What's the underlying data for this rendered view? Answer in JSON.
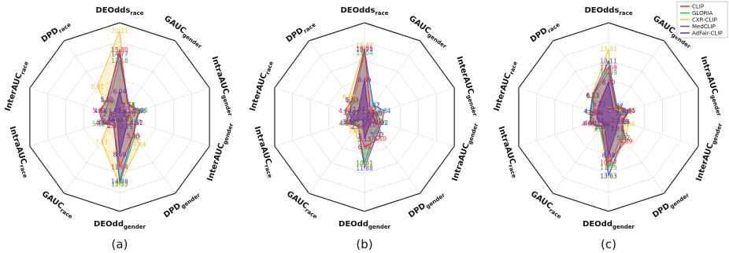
{
  "legend": {
    "items": [
      {
        "name": "CLIP",
        "color": "#e8243c"
      },
      {
        "name": "GLORIA",
        "color": "#37b34a"
      },
      {
        "name": "CXR-CLIP",
        "color": "#f2c230"
      },
      {
        "name": "MedCLIP",
        "color": "#3a55d6"
      },
      {
        "name": "AdFair-CLIP",
        "color": "#6b2c91"
      }
    ]
  },
  "chart_data": [
    {
      "type": "radar",
      "panel_label": "(a)",
      "axes": [
        {
          "base": "DEOdds",
          "sub": "race"
        },
        {
          "base": "GAUC",
          "sub": "gender"
        },
        {
          "base": "IntraAUC",
          "sub": "gender"
        },
        {
          "base": "InterAUC",
          "sub": "gender"
        },
        {
          "base": "DPD",
          "sub": "gender"
        },
        {
          "base": "DEOdd",
          "sub": "gender"
        },
        {
          "base": "GAUC",
          "sub": "race"
        },
        {
          "base": "IntraAUC",
          "sub": "race"
        },
        {
          "base": "InterAUC",
          "sub": "race"
        },
        {
          "base": "DPD",
          "sub": "race"
        }
      ],
      "series": [
        {
          "name": "CXR-CLIP",
          "values": [
            "20.21",
            "3.00",
            "3.00",
            "2.00",
            "7.84",
            "15.80",
            "7.11",
            "2.40",
            "2.60",
            "8.81"
          ]
        },
        {
          "name": "GLORIA",
          "values": [
            "13.18",
            "3.58",
            "5.26",
            "3.67",
            "5.82",
            "15.53",
            "2.28",
            "5.12",
            "3.57",
            "4.30"
          ]
        },
        {
          "name": "MedCLIP",
          "values": [
            "14.77",
            "3.34",
            "4.86",
            "4.01",
            "5.28",
            "14.98",
            "2.39",
            "3.98",
            "4.66",
            "5.12"
          ]
        },
        {
          "name": "CLIP",
          "values": [
            "15.80",
            "3.51",
            "4.37",
            "4.12",
            "5.33",
            "11.64",
            "2.45",
            "4.34",
            "5.02",
            "4.86"
          ]
        },
        {
          "name": "AdFair-CLIP",
          "values": [
            "6.04",
            "1.82",
            "2.29",
            "1.75",
            "2.75",
            "8.69",
            "0.99",
            "2.68",
            "2.46",
            "1.87"
          ]
        }
      ]
    },
    {
      "type": "radar",
      "panel_label": "(b)",
      "axes": [
        {
          "base": "DEOdds",
          "sub": "race"
        },
        {
          "base": "GAUC",
          "sub": "gender"
        },
        {
          "base": "InterAUC",
          "sub": "gender"
        },
        {
          "base": "IntraAUC",
          "sub": "gender"
        },
        {
          "base": "DPD",
          "sub": "gender"
        },
        {
          "base": "DEOdd",
          "sub": "gender"
        },
        {
          "base": "GAUC",
          "sub": "race"
        },
        {
          "base": "IntraAUC",
          "sub": "race"
        },
        {
          "base": "InterAUC",
          "sub": "race"
        },
        {
          "base": "DPD",
          "sub": "race"
        }
      ],
      "series": [
        {
          "name": "CXR-CLIP",
          "values": [
            "16.82",
            "2.20",
            "2.80",
            "3.10",
            "5.00",
            "10.82",
            "3.80",
            "4.68",
            "3.40",
            "6.00"
          ]
        },
        {
          "name": "GLORIA",
          "values": [
            "15.04",
            "3.52",
            "3.07",
            "4.01",
            "4.24",
            "10.61",
            "2.61",
            "3.30",
            "3.58",
            "4.40"
          ]
        },
        {
          "name": "MedCLIP",
          "values": [
            "15.74",
            "3.47",
            "4.84",
            "4.22",
            "5.03",
            "11.88",
            "2.59",
            "4.54",
            "3.62",
            "5.03"
          ]
        },
        {
          "name": "CLIP",
          "values": [
            "16.05",
            "2.32",
            "2.69",
            "3.35",
            "6.10",
            "6.98",
            "2.76",
            "3.98",
            "4.76",
            "4.93"
          ]
        },
        {
          "name": "AdFair-CLIP",
          "values": [
            "8.69",
            "1.44",
            "1.88",
            "2.61",
            "2.10",
            "5.13",
            "0.79",
            "3.58",
            "2.93",
            "2.27"
          ]
        }
      ]
    },
    {
      "type": "radar",
      "panel_label": "(c)",
      "axes": [
        {
          "base": "DEOdds",
          "sub": "race"
        },
        {
          "base": "GAUC",
          "sub": "gender"
        },
        {
          "base": "IntraAUC",
          "sub": "gender"
        },
        {
          "base": "InterAUC",
          "sub": "gender"
        },
        {
          "base": "DPD",
          "sub": "gender"
        },
        {
          "base": "DEOdd",
          "sub": "gender"
        },
        {
          "base": "GAUC",
          "sub": "race"
        },
        {
          "base": "IntraAUC",
          "sub": "race"
        },
        {
          "base": "InterAUC",
          "sub": "race"
        },
        {
          "base": "DPD",
          "sub": "race"
        }
      ],
      "series": [
        {
          "name": "CXR-CLIP",
          "values": [
            "15.91",
            "2.30",
            "4.11",
            "4.96",
            "6.40",
            "13.83",
            "3.47",
            "4.00",
            "4.25",
            "6.51"
          ]
        },
        {
          "name": "GLORIA",
          "values": [
            "10.49",
            "2.88",
            "4.21",
            "3.66",
            "5.27",
            "11.75",
            "3.27",
            "4.44",
            "4.32",
            "6.13"
          ]
        },
        {
          "name": "MedCLIP",
          "values": [
            "13.11",
            "3.27",
            "5.05",
            "3.49",
            "5.92",
            "13.63",
            "2.88",
            "4.50",
            "4.52",
            "6.33"
          ]
        },
        {
          "name": "CLIP",
          "values": [
            "11.68",
            "2.98",
            "4.84",
            "3.25",
            "6.89",
            "10.57",
            "2.67",
            "4.93",
            "3.58",
            "6.27"
          ]
        },
        {
          "name": "AdFair-CLIP",
          "values": [
            "8.20",
            "2.01",
            "3.29",
            "2.30",
            "3.31",
            "8.88",
            "1.96",
            "2.74",
            "2.89",
            "3.73"
          ]
        }
      ]
    }
  ]
}
